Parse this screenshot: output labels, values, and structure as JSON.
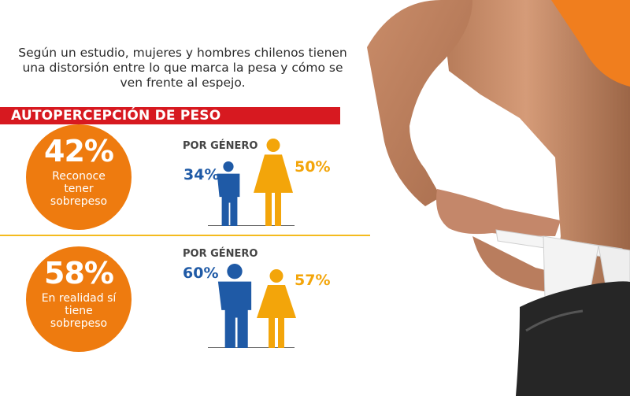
{
  "intro": "Según un estudio, mujeres y hombres chilenos tienen una distorsión entre lo que marca la pesa y cómo se ven frente al espejo.",
  "banner_title": "AUTOPERCEPCIÓN DE PESO",
  "colors": {
    "banner": "#d71920",
    "circle": "#ee7b0f",
    "men": "#1f5aa6",
    "women": "#f3a50a",
    "divider": "#f4bb1e"
  },
  "chart_data": [
    {
      "type": "bar",
      "headline_value": 42,
      "headline_label": "42%",
      "headline_desc": "Reconoce tener sobrepeso",
      "group_label": "POR GÉNERO",
      "categories": [
        "Hombres",
        "Mujeres"
      ],
      "values": [
        34,
        50
      ],
      "value_labels": [
        "34%",
        "50%"
      ]
    },
    {
      "type": "bar",
      "headline_value": 58,
      "headline_label": "58%",
      "headline_desc": "En realidad sí tiene sobrepeso",
      "group_label": "POR GÉNERO",
      "categories": [
        "Hombres",
        "Mujeres"
      ],
      "values": [
        60,
        57
      ],
      "value_labels": [
        "60%",
        "57%"
      ]
    }
  ]
}
